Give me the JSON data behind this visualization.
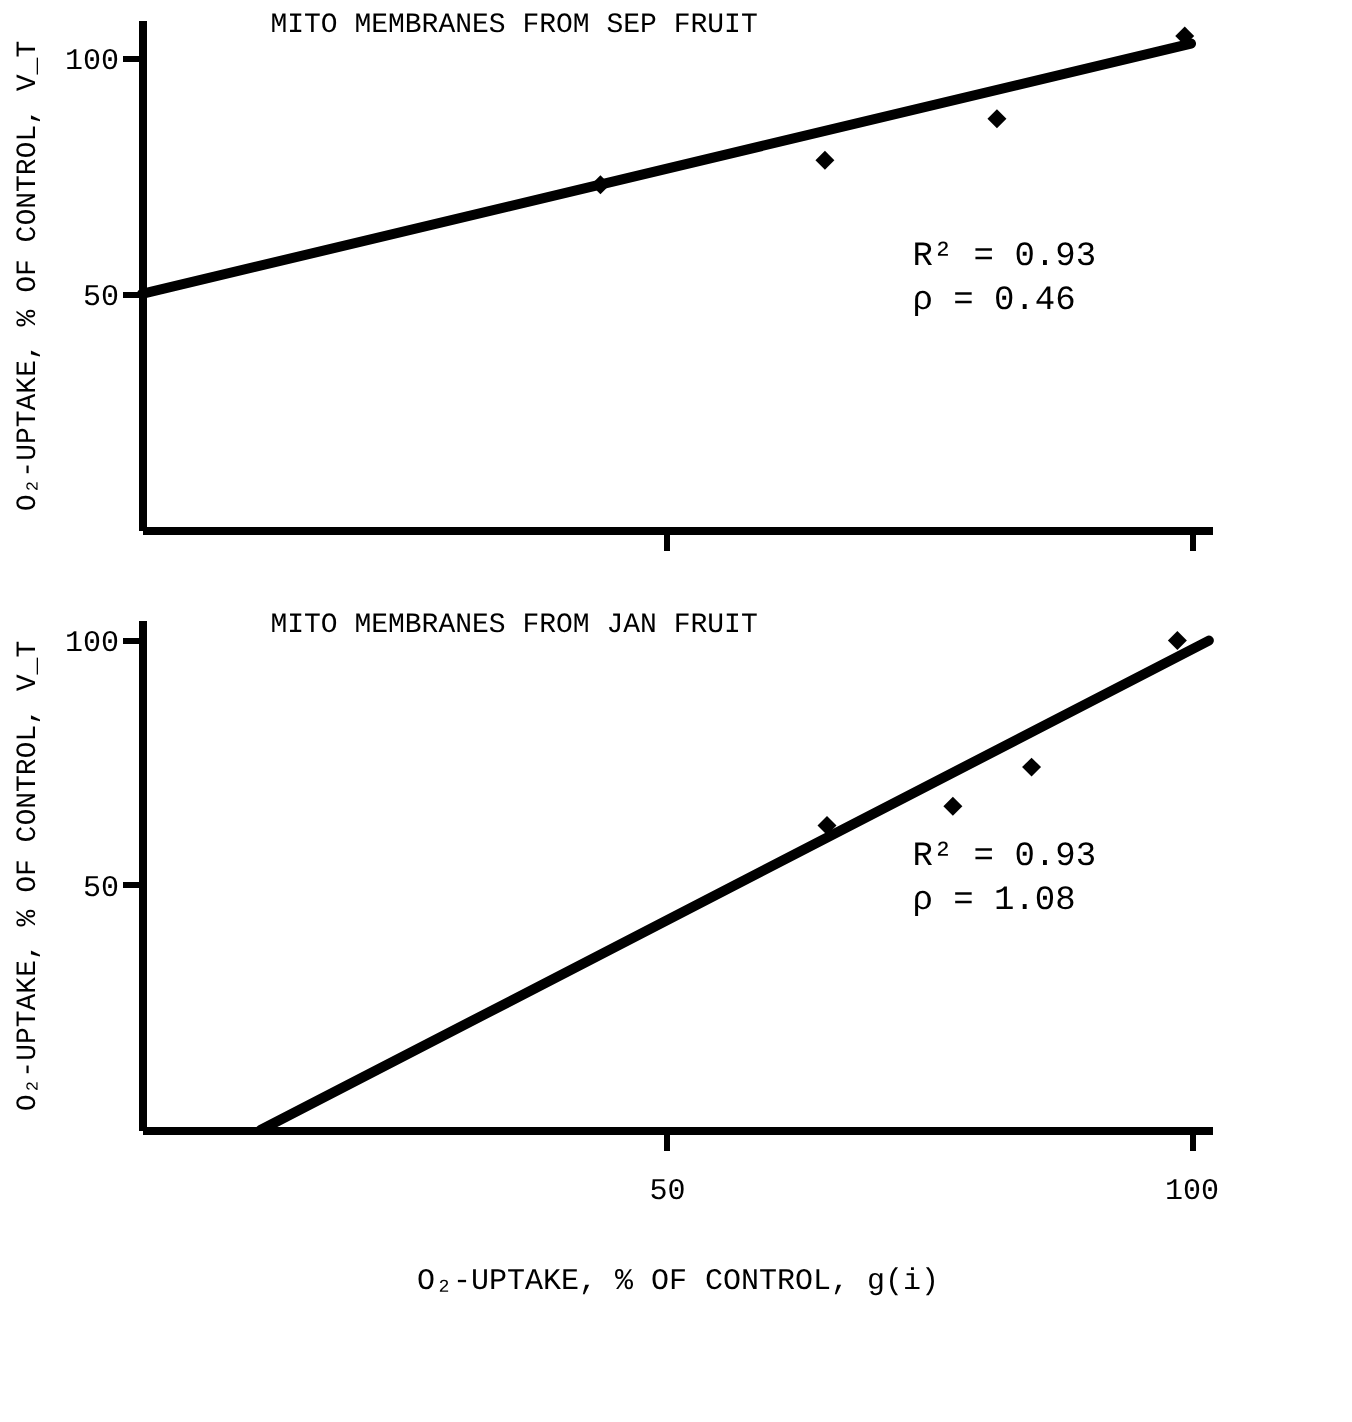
{
  "chart_data": [
    {
      "type": "scatter",
      "title": "MITO MEMBRANES FROM SEP FRUIT",
      "ylabel": "O₂-UPTAKE, % OF CONTROL, V_T",
      "annotations": [
        "R² = 0.93",
        "ρ  = 0.46"
      ],
      "series": [
        {
          "color": "#000000",
          "x": [
            43.7,
            65.1,
            81.5,
            99.4
          ],
          "values": [
            73.1,
            78.3,
            87.1,
            104.6
          ]
        },
        {
          "type": "line",
          "color": "#000000",
          "marker": "none",
          "x": [
            0,
            100
          ],
          "values": [
            50,
            103
          ]
        }
      ],
      "xlim": [
        0,
        102
      ],
      "xticks": [
        50,
        100
      ],
      "ylim": [
        0,
        108
      ],
      "yticks": [
        50,
        100
      ],
      "tick_labels": "y",
      "marker": "diamond",
      "line_style": "solid"
    },
    {
      "type": "scatter",
      "title": "MITO MEMBRANES FROM JAN FRUIT",
      "xlabel": "O₂-UPTAKE, % OF CONTROL, g(i)",
      "ylabel": "O₂-UPTAKE, % OF CONTROL, V_T",
      "annotations": [
        "R² = 0.93",
        "ρ  = 1.08"
      ],
      "series": [
        {
          "color": "#000000",
          "x": [
            65.3,
            77.3,
            84.8,
            98.7
          ],
          "values": [
            62.1,
            66.0,
            74.0,
            99.8
          ]
        },
        {
          "type": "line",
          "color": "#000000",
          "marker": "none",
          "x": [
            11.3,
            101.7
          ],
          "values": [
            0,
            99.8
          ]
        }
      ],
      "xlim": [
        0,
        102
      ],
      "xticks": [
        50,
        100
      ],
      "ylim": [
        0,
        104
      ],
      "yticks": [
        50,
        100
      ],
      "marker": "diamond",
      "line_style": "solid"
    }
  ]
}
